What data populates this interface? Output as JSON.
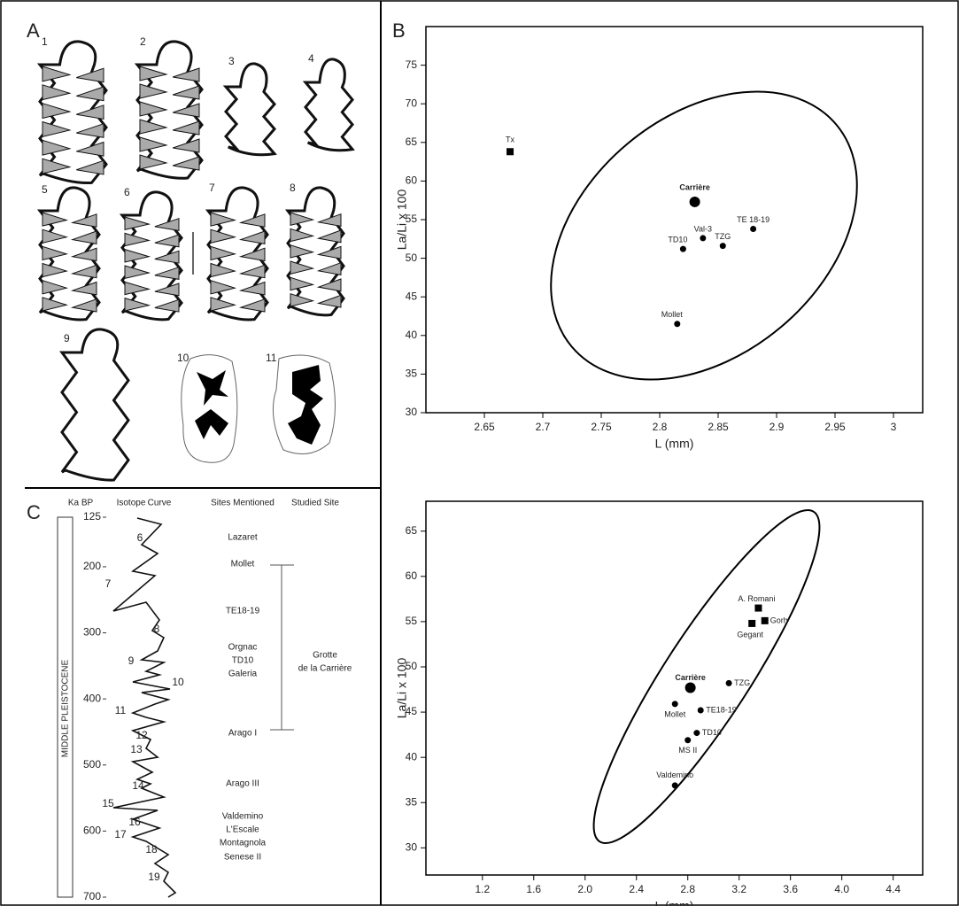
{
  "panels": {
    "a": "A",
    "b": "B",
    "c": "C"
  },
  "panel_a": {
    "specimens": [
      "1",
      "2",
      "3",
      "4",
      "5",
      "6",
      "7",
      "8",
      "9",
      "10",
      "11"
    ]
  },
  "panel_c": {
    "headers": [
      "Ka BP",
      "Isotope",
      "Curve",
      "Sites Mentioned",
      "Studied Site"
    ],
    "period": "MIDDLE PLEISTOCENE",
    "age_lim": [
      125,
      700
    ],
    "age_ticks": [
      125,
      200,
      300,
      400,
      500,
      600,
      700
    ],
    "stages": [
      "6",
      "7",
      "8",
      "9",
      "10",
      "11",
      "12",
      "13",
      "14",
      "15",
      "16",
      "17",
      "18",
      "19"
    ],
    "sites": [
      "Lazaret",
      "Mollet",
      "TE18-19",
      "Orgnac",
      "TD10",
      "Galeria",
      "Arago I",
      "Arago III",
      "Valdemino",
      "L'Escale",
      "Montagnola",
      "Senese II"
    ],
    "studied_site": [
      "Grotte",
      "de la Carrière"
    ]
  },
  "chart_data": [
    {
      "type": "scatter",
      "xlabel": "L (mm)",
      "ylabel": "La/Li x 100",
      "color": "#000000",
      "xlim": [
        2.6,
        3.025
      ],
      "ylim": [
        30,
        80
      ],
      "xticks": [
        2.65,
        2.7,
        2.75,
        2.8,
        2.85,
        2.9,
        2.95,
        3
      ],
      "yticks": [
        30,
        35,
        40,
        45,
        50,
        55,
        60,
        65,
        70,
        75
      ],
      "points": [
        {
          "label": "Tx",
          "x": 2.672,
          "y": 63.8,
          "marker": "square"
        },
        {
          "label": "Carrière",
          "x": 2.83,
          "y": 57.3,
          "marker": "big-circle"
        },
        {
          "label": "Val-3",
          "x": 2.837,
          "y": 52.6,
          "marker": "circle"
        },
        {
          "label": "TD10",
          "x": 2.82,
          "y": 51.2,
          "marker": "circle"
        },
        {
          "label": "TZG",
          "x": 2.854,
          "y": 51.6,
          "marker": "circle"
        },
        {
          "label": "TE 18-19",
          "x": 2.88,
          "y": 53.8,
          "marker": "circle"
        },
        {
          "label": "Mollet",
          "x": 2.815,
          "y": 41.5,
          "marker": "circle"
        }
      ]
    },
    {
      "type": "scatter",
      "xlabel": "L (mm)",
      "ylabel": "La/Li x 100",
      "color": "#000000",
      "xlim": [
        0.76,
        4.63
      ],
      "ylim": [
        27,
        68.3
      ],
      "xticks": [
        1.2,
        1.6,
        {
          "value": 2,
          "label": "2.0"
        },
        2.4,
        2.8,
        3.2,
        3.6,
        {
          "value": 4,
          "label": "4.0"
        },
        4.4
      ],
      "yticks": [
        30,
        35,
        40,
        45,
        50,
        55,
        60,
        65
      ],
      "points": [
        {
          "label": "A. Romani",
          "x": 3.35,
          "y": 56.5,
          "marker": "square"
        },
        {
          "label": "Gegant",
          "x": 3.3,
          "y": 54.8,
          "marker": "square"
        },
        {
          "label": "Gorh",
          "x": 3.4,
          "y": 55.1,
          "marker": "square"
        },
        {
          "label": "TZG",
          "x": 3.12,
          "y": 48.2,
          "marker": "circle"
        },
        {
          "label": "Carrière",
          "x": 2.82,
          "y": 47.7,
          "marker": "big-circle"
        },
        {
          "label": "Mollet",
          "x": 2.7,
          "y": 45.9,
          "marker": "circle"
        },
        {
          "label": "TE18-19",
          "x": 2.9,
          "y": 45.2,
          "marker": "circle"
        },
        {
          "label": "TD10",
          "x": 2.87,
          "y": 42.7,
          "marker": "circle"
        },
        {
          "label": "MS II",
          "x": 2.8,
          "y": 41.9,
          "marker": "circle"
        },
        {
          "label": "Valdemino",
          "x": 2.7,
          "y": 36.9,
          "marker": "circle"
        }
      ]
    }
  ]
}
